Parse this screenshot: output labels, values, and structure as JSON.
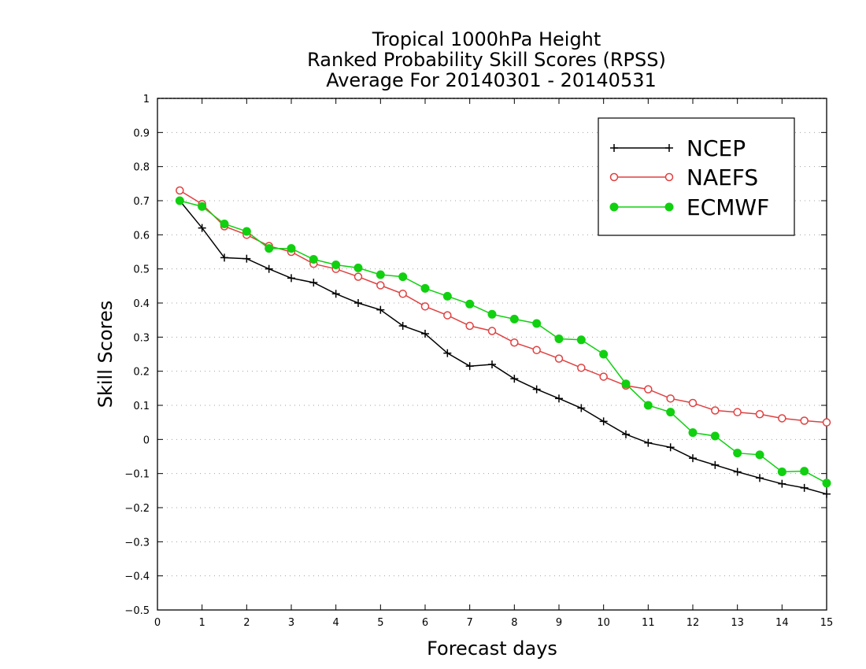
{
  "chart_data": {
    "type": "line",
    "title": "Tropical 1000hPa Height",
    "subtitle": "Ranked Probability Skill Scores (RPSS)",
    "subtitle2": "Average For 20140301 - 20140531",
    "xlabel": "Forecast days",
    "ylabel": "Skill Scores",
    "xlim": [
      0,
      15
    ],
    "ylim": [
      -0.5,
      1
    ],
    "x_ticks": [
      0,
      1,
      2,
      3,
      4,
      5,
      6,
      7,
      8,
      9,
      10,
      11,
      12,
      13,
      14,
      15
    ],
    "y_ticks": [
      -0.5,
      -0.4,
      -0.3,
      -0.2,
      -0.1,
      0,
      0.1,
      0.2,
      0.3,
      0.4,
      0.5,
      0.6,
      0.7,
      0.8,
      0.9,
      1
    ],
    "x_tick_labels": [
      "0",
      "1",
      "2",
      "3",
      "4",
      "5",
      "6",
      "7",
      "8",
      "9",
      "10",
      "11",
      "12",
      "13",
      "14",
      "15"
    ],
    "y_tick_labels": [
      "−0.5",
      "−0.4",
      "−0.3",
      "−0.2",
      "−0.1",
      "0",
      "0.1",
      "0.2",
      "0.3",
      "0.4",
      "0.5",
      "0.6",
      "0.7",
      "0.8",
      "0.9",
      "1"
    ],
    "grid": "horizontal dotted",
    "legend_position": "top-right",
    "x": [
      0.5,
      1.0,
      1.5,
      2.0,
      2.5,
      3.0,
      3.5,
      4.0,
      4.5,
      5.0,
      5.5,
      6.0,
      6.5,
      7.0,
      7.5,
      8.0,
      8.5,
      9.0,
      9.5,
      10.0,
      10.5,
      11.0,
      11.5,
      12.0,
      12.5,
      13.0,
      13.5,
      14.0,
      14.5,
      15.0
    ],
    "series": [
      {
        "name": "NCEP",
        "color": "#000000",
        "marker": "plus",
        "values": [
          0.7,
          0.62,
          0.533,
          0.53,
          0.5,
          0.473,
          0.46,
          0.427,
          0.4,
          0.38,
          0.333,
          0.31,
          0.253,
          0.215,
          0.22,
          0.178,
          0.147,
          0.12,
          0.092,
          0.053,
          0.015,
          -0.01,
          -0.023,
          -0.055,
          -0.075,
          -0.095,
          -0.113,
          -0.13,
          -0.142,
          -0.16
        ]
      },
      {
        "name": "NAEFS",
        "color": "#e04040",
        "marker": "open-circle",
        "values": [
          0.73,
          0.69,
          0.625,
          0.6,
          0.567,
          0.55,
          0.515,
          0.5,
          0.477,
          0.452,
          0.427,
          0.39,
          0.364,
          0.333,
          0.318,
          0.284,
          0.262,
          0.237,
          0.21,
          0.184,
          0.158,
          0.147,
          0.12,
          0.107,
          0.085,
          0.08,
          0.074,
          0.062,
          0.055,
          0.05
        ]
      },
      {
        "name": "ECMWF",
        "color": "#10d010",
        "marker": "filled-circle",
        "values": [
          0.7,
          0.683,
          0.632,
          0.61,
          0.56,
          0.56,
          0.528,
          0.512,
          0.503,
          0.483,
          0.477,
          0.443,
          0.42,
          0.397,
          0.367,
          0.353,
          0.34,
          0.295,
          0.292,
          0.25,
          0.163,
          0.1,
          0.08,
          0.02,
          0.01,
          -0.04,
          -0.045,
          -0.095,
          -0.093,
          -0.128
        ]
      }
    ]
  }
}
